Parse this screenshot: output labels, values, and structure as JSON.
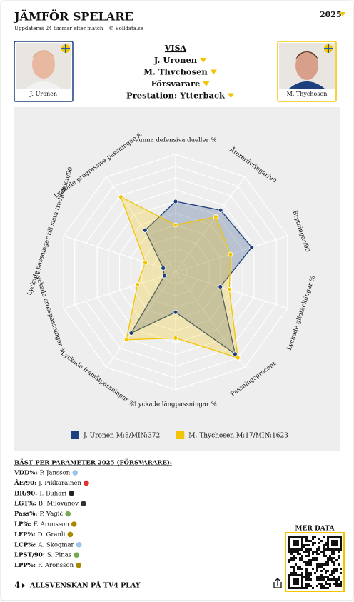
{
  "header": {
    "title": "JÄMFÖR SPELARE",
    "subtitle": "Uppdateras 24 timmar efter match – © Bolldata.se",
    "season": "2025"
  },
  "players": [
    {
      "name": "J. Uronen"
    },
    {
      "name": "M. Thychosen"
    }
  ],
  "visa": {
    "title": "VISA",
    "options": [
      "J. Uronen",
      "M. Thychosen",
      "Försvarare",
      "Prestation: Ytterback"
    ]
  },
  "chart_data": {
    "type": "radar",
    "categories": [
      "Vunna defensiva dueller %",
      "Återerövringar/90",
      "Brytningar/90",
      "Lyckade glidtacklingar %",
      "Passningsprocent",
      "Lyckade långpassningar %",
      "Lyckade framåtpassningar %",
      "Lyckade crosspassningar %",
      "Lyckade passningar till sista tredjedelen/90",
      "Lyckade progressiva passningar %"
    ],
    "series": [
      {
        "name": "J. Uronen M:8/MIN:372",
        "color": "#1d3f7c",
        "values": [
          60,
          65,
          68,
          40,
          86,
          34,
          64,
          10,
          11,
          44
        ]
      },
      {
        "name": "M. Thychosen M:17/MIN:1623",
        "color": "#f2c500",
        "values": [
          40,
          58,
          49,
          48,
          90,
          56,
          71,
          34,
          27,
          79
        ]
      }
    ],
    "rlim": [
      0,
      100
    ],
    "rticks": [
      10,
      20,
      30,
      40,
      50,
      60,
      70,
      80,
      90,
      100
    ]
  },
  "best": {
    "title": "BÄST PER PARAMETER 2025 (FÖRSVARARE):",
    "rows": [
      {
        "param": "VDD%:",
        "player": "P. Jansson"
      },
      {
        "param": "ÅE/90:",
        "player": "J. Pikkarainen"
      },
      {
        "param": "BR/90:",
        "player": "I. Buhari"
      },
      {
        "param": "LGT%:",
        "player": "B. Milovanov"
      },
      {
        "param": "Pass%:",
        "player": "P. Vagić"
      },
      {
        "param": "LP%:",
        "player": "F. Aronsson"
      },
      {
        "param": "LFP%:",
        "player": "D. Granli"
      },
      {
        "param": "LCP%:",
        "player": "A. Skogmar"
      },
      {
        "param": "LPST/90:",
        "player": "S. Pinas"
      },
      {
        "param": "LPP%:",
        "player": "F. Aronsson"
      }
    ]
  },
  "qr": {
    "title": "MER DATA"
  },
  "footer": {
    "text": "ALLSVENSKAN PÅ TV4 PLAY"
  }
}
